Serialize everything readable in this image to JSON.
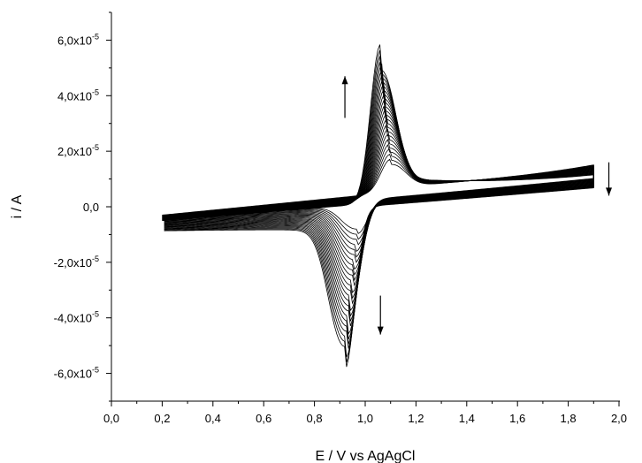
{
  "chart_data": {
    "type": "line",
    "title": "",
    "xlabel": "E / V vs AgAgCl",
    "ylabel": "i / A",
    "xlim": [
      0.0,
      2.0
    ],
    "ylim": [
      -7e-05,
      7e-05
    ],
    "x_ticks": [
      0.0,
      0.2,
      0.4,
      0.6,
      0.8,
      1.0,
      1.2,
      1.4,
      1.6,
      1.8,
      2.0
    ],
    "x_tick_labels": [
      "0,0",
      "0,2",
      "0,4",
      "0,6",
      "0,8",
      "1,0",
      "1,2",
      "1,4",
      "1,6",
      "1,8",
      "2,0"
    ],
    "y_ticks": [
      -6e-05,
      -4e-05,
      -2e-05,
      0,
      2e-05,
      4e-05,
      6e-05
    ],
    "y_tick_labels": [
      {
        "base": "-6,0x10",
        "exp": "-5"
      },
      {
        "base": "-4,0x10",
        "exp": "-5"
      },
      {
        "base": "-2,0x10",
        "exp": "-5"
      },
      {
        "base": "0,0",
        "exp": ""
      },
      {
        "base": "2,0x10",
        "exp": "-5"
      },
      {
        "base": "4,0x10",
        "exp": "-5"
      },
      {
        "base": "6,0x10",
        "exp": "-5"
      }
    ],
    "grid": false,
    "line_color": "#000000",
    "potential_range": [
      0.2,
      1.9
    ],
    "cycles": {
      "count": 24,
      "anodic_peak_E": [
        1.1,
        1.06
      ],
      "anodic_peak_i": [
        1.2e-05,
        5.7e-05
      ],
      "cathodic_peak_E": [
        0.97,
        0.92
      ],
      "cathodic_peak_i": [
        -1.2e-05,
        -5.8e-05
      ],
      "upper_vertex_i": [
        1.5e-05,
        1e-05
      ],
      "lower_vertex_i": [
        -3e-06,
        -5e-06
      ]
    },
    "annotations": [
      {
        "type": "arrow-up",
        "E": 0.92,
        "i_from": 3.2e-05,
        "i_to": 4.7e-05
      },
      {
        "type": "arrow-down",
        "E": 1.06,
        "i_from": -3.2e-05,
        "i_to": -4.6e-05
      },
      {
        "type": "arrow-down",
        "E": 1.96,
        "i_from": 1.6e-05,
        "i_to": 4e-06
      }
    ]
  }
}
